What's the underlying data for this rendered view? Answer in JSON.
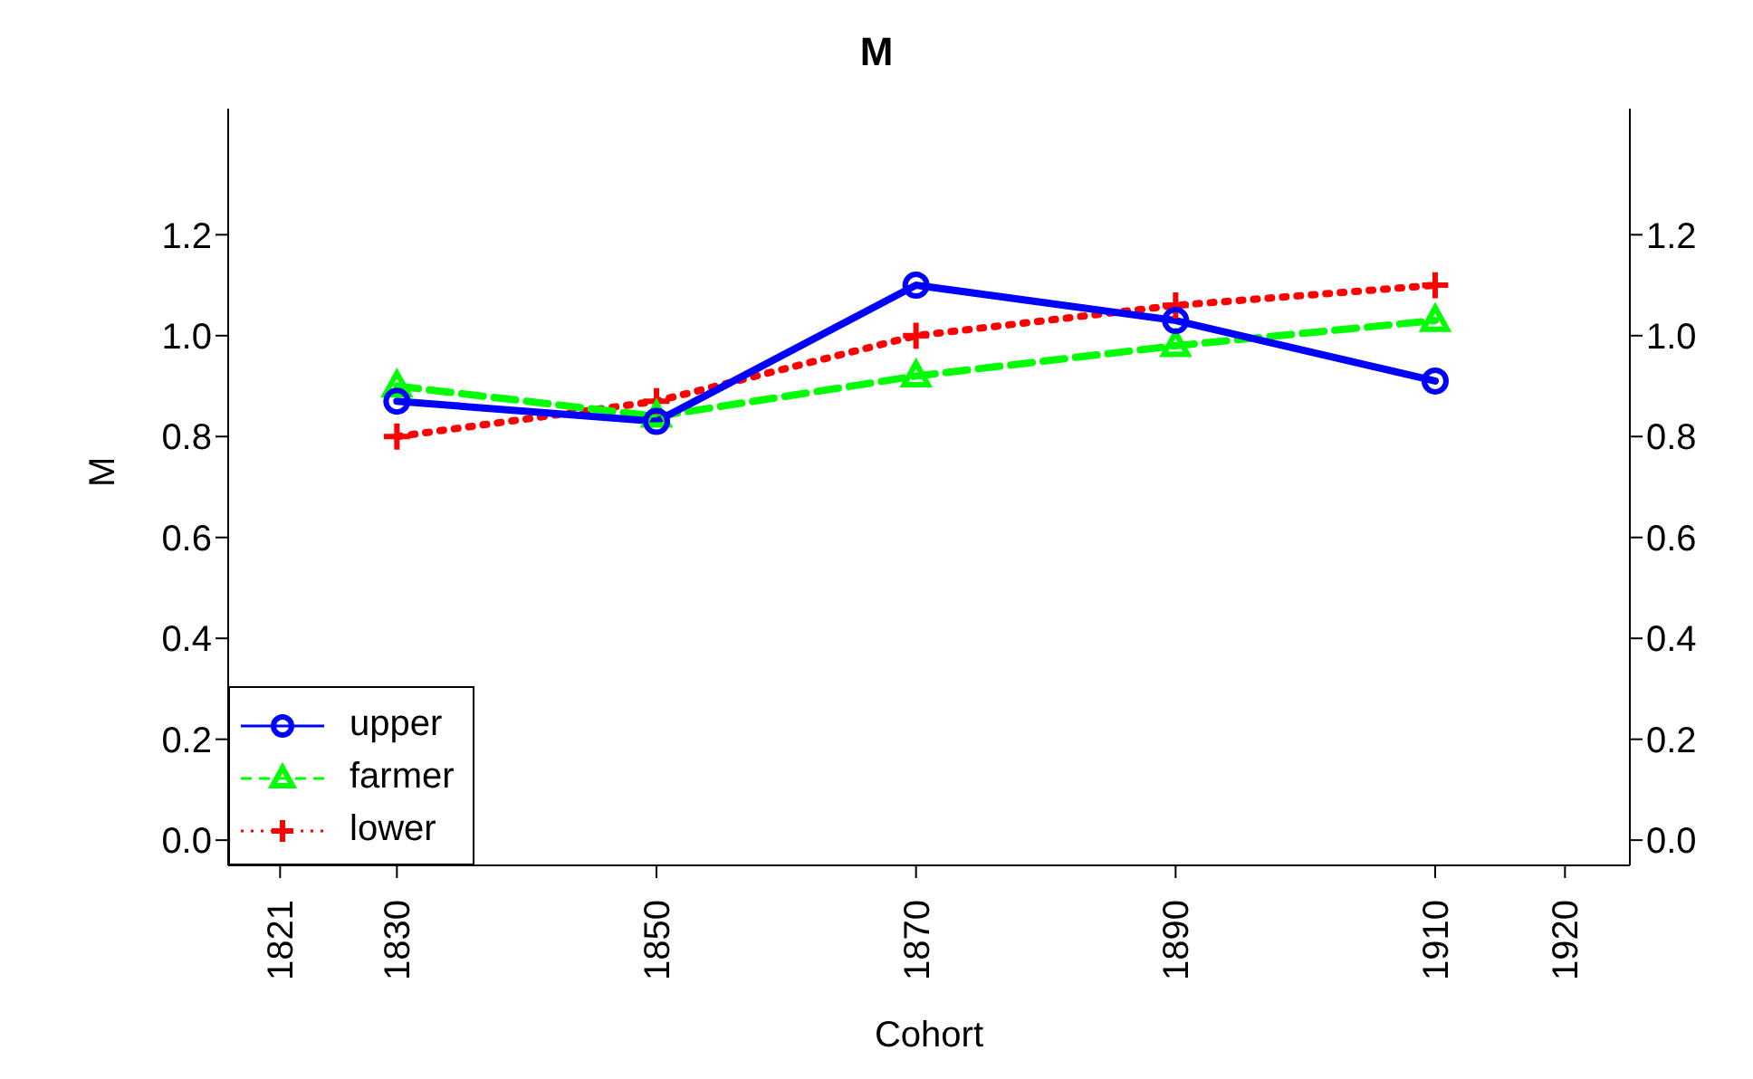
{
  "chart_data": {
    "type": "line",
    "title": "M",
    "xlabel": "Cohort",
    "ylabel": "M",
    "x": [
      1830,
      1850,
      1870,
      1890,
      1910
    ],
    "xlim": [
      1817,
      1925
    ],
    "xticks": [
      1821,
      1830,
      1850,
      1870,
      1890,
      1910,
      1920
    ],
    "ylim": [
      -0.05,
      1.45
    ],
    "yticks": [
      {
        "value": 0,
        "label": "0.0"
      },
      0.2,
      0.4,
      0.6,
      0.8,
      {
        "value": 1,
        "label": "1.0"
      },
      1.2
    ],
    "y2lim": [
      -0.05,
      1.45
    ],
    "y2ticks": [
      {
        "value": 0,
        "label": "0.0"
      },
      0.2,
      0.4,
      0.6,
      0.8,
      {
        "value": 1,
        "label": "1.0"
      },
      1.2
    ],
    "legend": "bottom left",
    "grid": false,
    "series": [
      {
        "name": "upper",
        "color": "#0000ff",
        "values": [
          0.87,
          0.83,
          1.1,
          1.03,
          0.91
        ],
        "marker": "circle",
        "line_style": "solid"
      },
      {
        "name": "farmer",
        "color": "#00ff00",
        "values": [
          0.9,
          0.84,
          0.92,
          0.98,
          1.03
        ],
        "marker": "triangle",
        "line_style": "dashed"
      },
      {
        "name": "lower",
        "color": "#ff0000",
        "values": [
          0.8,
          0.87,
          1.0,
          1.06,
          1.1
        ],
        "marker": "cross",
        "line_style": "dotted"
      }
    ]
  }
}
